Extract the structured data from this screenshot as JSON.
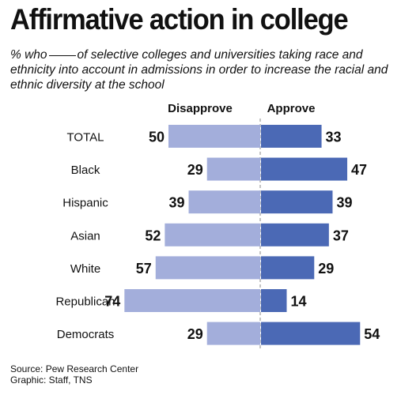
{
  "title": "Affirmative action in college",
  "subtitle": {
    "before_blank": "% who",
    "after_blank": "of selective colleges and universities taking race and ethnicity into account in admissions in order to increase the racial and ethnic diversity at the school"
  },
  "source_line": "Source: Pew Research Center",
  "credit_line": "Graphic: Staff, TNS",
  "colors": {
    "disapprove": "#a3aedb",
    "approve": "#4b69b5",
    "divider": "#888888"
  },
  "chart_data": {
    "type": "bar",
    "orientation": "diverging-horizontal",
    "categories": [
      "TOTAL",
      "Black",
      "Hispanic",
      "Asian",
      "White",
      "Republican",
      "Democrats"
    ],
    "series": [
      {
        "name": "Disapprove",
        "values": [
          50,
          29,
          39,
          52,
          57,
          74,
          29
        ]
      },
      {
        "name": "Approve",
        "values": [
          33,
          47,
          39,
          37,
          29,
          14,
          54
        ]
      }
    ],
    "grid": false
  }
}
